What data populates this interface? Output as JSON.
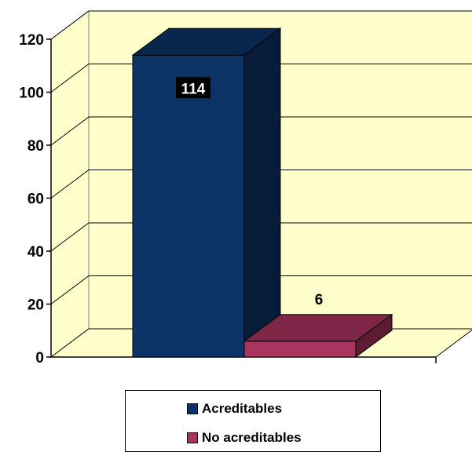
{
  "chart_data": {
    "type": "bar",
    "categories": [
      "Acreditables",
      "No acreditables"
    ],
    "series": [
      {
        "values": [
          114,
          6
        ]
      }
    ],
    "data_labels": [
      "114",
      "6"
    ],
    "ylim": [
      0,
      120
    ],
    "yticks": [
      "0",
      "20",
      "40",
      "60",
      "80",
      "100",
      "120"
    ],
    "grid": true,
    "three_d": true,
    "legend_position": "bottom",
    "colors": {
      "Acreditables": "#0c3366",
      "No acreditables": "#a8345f",
      "plot_background": "#ffffcc"
    }
  },
  "legend": {
    "items": [
      {
        "label": "Acreditables",
        "color": "#0c3366"
      },
      {
        "label": "No acreditables",
        "color": "#a8345f"
      }
    ]
  }
}
